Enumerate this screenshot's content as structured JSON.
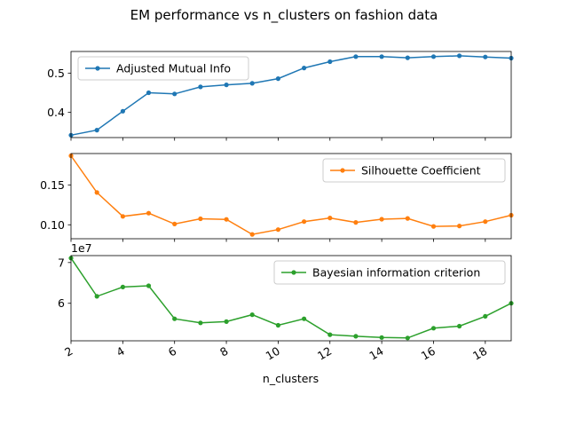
{
  "chart_data": {
    "title": "EM performance vs n_clusters on fashion data",
    "type": "line",
    "xlabel": "n_clusters",
    "xlim": [
      2,
      19
    ],
    "x": [
      2,
      3,
      4,
      5,
      6,
      7,
      8,
      9,
      10,
      11,
      12,
      13,
      14,
      15,
      16,
      17,
      18,
      19
    ],
    "x_ticks": [
      2,
      4,
      6,
      8,
      10,
      12,
      14,
      16,
      18
    ],
    "x_tick_labels": [
      "2",
      "4",
      "6",
      "8",
      "10",
      "12",
      "14",
      "16",
      "18"
    ],
    "panels": [
      {
        "name": "Adjusted Mutual Info",
        "color": "#1f77b4",
        "legend_position": "upper-left",
        "ylim": [
          0.336,
          0.555
        ],
        "y_ticks": [
          0.4,
          0.5
        ],
        "y_tick_labels": [
          "0.4",
          "0.5"
        ],
        "offset_text": "",
        "values": [
          0.342,
          0.355,
          0.403,
          0.45,
          0.447,
          0.465,
          0.47,
          0.474,
          0.486,
          0.513,
          0.529,
          0.542,
          0.542,
          0.539,
          0.542,
          0.544,
          0.541,
          0.538
        ]
      },
      {
        "name": "Silhouette Coefficient",
        "color": "#ff7f0e",
        "legend_position": "upper-right",
        "ylim": [
          0.0825,
          0.1893
        ],
        "y_ticks": [
          0.1,
          0.15
        ],
        "y_tick_labels": [
          "0.10",
          "0.15"
        ],
        "offset_text": "",
        "values": [
          0.1865,
          0.1405,
          0.1105,
          0.1145,
          0.101,
          0.1075,
          0.1068,
          0.088,
          0.094,
          0.104,
          0.1085,
          0.103,
          0.107,
          0.108,
          0.098,
          0.0985,
          0.104,
          0.112
        ]
      },
      {
        "name": "Bayesian information criterion",
        "color": "#2ca02c",
        "legend_position": "upper-right",
        "ylim": [
          50800000,
          71700000
        ],
        "y_ticks": [
          60000000,
          70000000
        ],
        "y_tick_labels": [
          "6",
          "7"
        ],
        "offset_text": "1e7",
        "values": [
          71100000,
          61700000,
          64000000,
          64300000,
          56200000,
          55200000,
          55500000,
          57200000,
          54600000,
          56200000,
          52300000,
          51900000,
          51600000,
          51500000,
          53900000,
          54400000,
          56800000,
          60000000
        ]
      }
    ]
  }
}
